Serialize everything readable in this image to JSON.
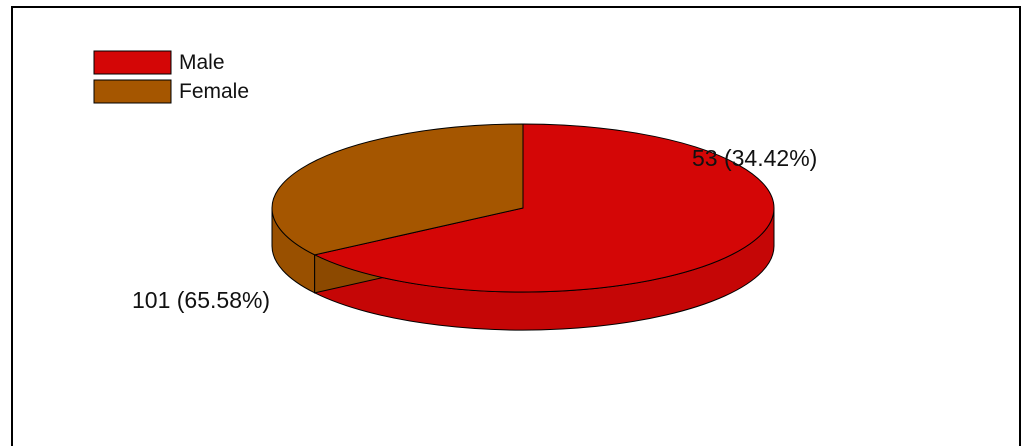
{
  "chart_data": {
    "type": "pie",
    "style": "3d",
    "categories": [
      "Male",
      "Female"
    ],
    "values": [
      101,
      53
    ],
    "percent": [
      65.58,
      34.42
    ],
    "data_labels": [
      "101 (65.58%)",
      "53 (34.42%)"
    ],
    "colors": [
      "#d40606",
      "#a55600"
    ],
    "legend": {
      "placement": "top-left",
      "entries": [
        "Male",
        "Female"
      ]
    },
    "title": "",
    "start_angle_deg": -90,
    "direction": "clockwise"
  }
}
